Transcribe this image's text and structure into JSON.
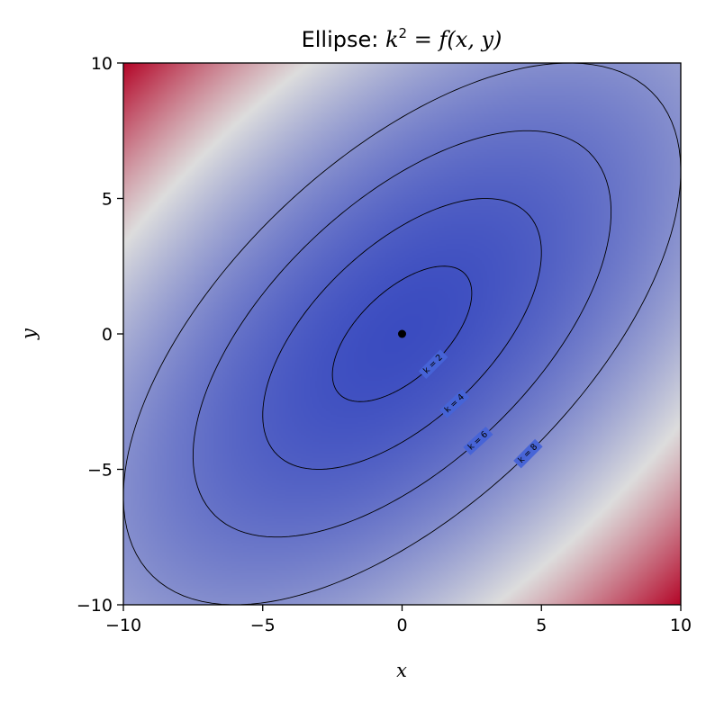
{
  "chart_data": {
    "type": "heatmap",
    "title_parts": {
      "prefix": "Ellipse: ",
      "var": "k",
      "sup": "2",
      "rest": " = f(x, y)"
    },
    "xlabel": "x",
    "ylabel": "y",
    "xlim": [
      -10,
      10
    ],
    "ylim": [
      -10,
      10
    ],
    "xticks": [
      -10,
      -5,
      0,
      5,
      10
    ],
    "yticks": [
      -10,
      -5,
      0,
      5,
      10
    ],
    "xtick_labels": [
      "−10",
      "−5",
      "0",
      "5",
      "10"
    ],
    "ytick_labels": [
      "−10",
      "−5",
      "0",
      "5",
      "10"
    ],
    "colormap": "coolwarm",
    "colormap_colors": [
      "#3b4cc0",
      "#dddddd",
      "#b40426"
    ],
    "quadratic_form": {
      "a": 1.0,
      "b": 1.0,
      "c": -1.2
    },
    "center_point": {
      "x": 0,
      "y": 0
    },
    "contours": [
      {
        "k": 2,
        "label": "k = 2",
        "label_at": {
          "x": 1.2,
          "y": -1.2
        }
      },
      {
        "k": 4,
        "label": "k = 4",
        "label_at": {
          "x": 1.9,
          "y": -2.6
        }
      },
      {
        "k": 6,
        "label": "k = 6",
        "label_at": {
          "x": 2.9,
          "y": -4.2
        }
      },
      {
        "k": 8,
        "label": "k = 8",
        "label_at": {
          "x": 4.6,
          "y": -4.5
        }
      }
    ],
    "grid": false
  }
}
